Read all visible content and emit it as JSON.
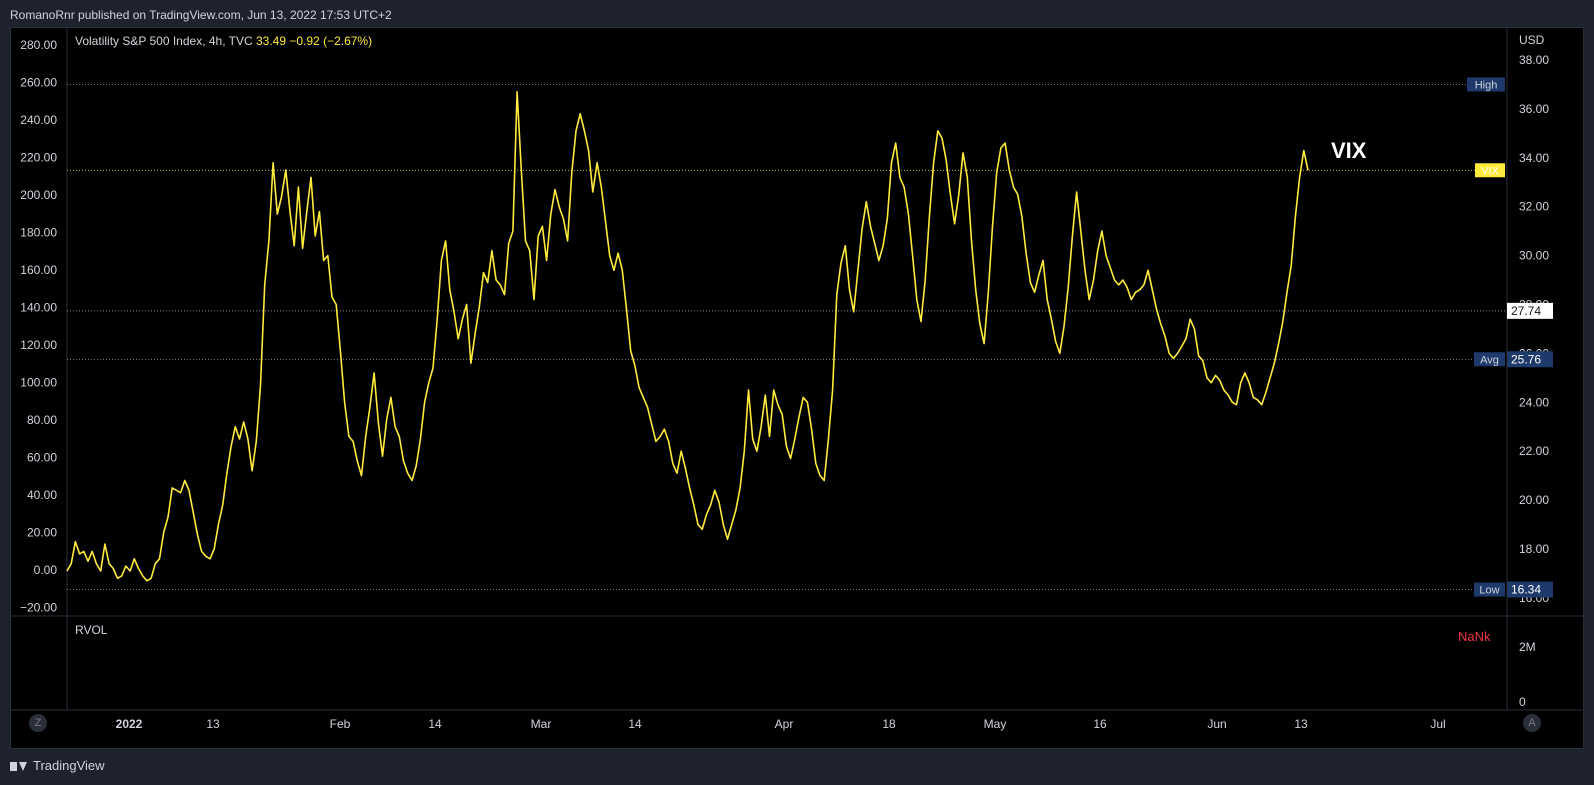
{
  "header": {
    "published_text": "RomanoRnr published on TradingView.com, Jun 13, 2022 17:53 UTC+2"
  },
  "footer": {
    "brand": "TradingView"
  },
  "legend": {
    "symbol_text": "Volatility S&P 500 Index, 4h, TVC",
    "last": "33.49",
    "change": "−0.92 (−2.67%)"
  },
  "annotation": {
    "text": "VIX"
  },
  "rvol": {
    "label": "RVOL",
    "value": "NaNk"
  },
  "buttons": {
    "left": "Z",
    "right": "A"
  },
  "colors": {
    "line": "#ffeb3b",
    "background": "#000000",
    "panel": "#1e222d",
    "badge": "#1e3a6a",
    "rvol_value": "#f23645"
  },
  "chart_data": {
    "type": "line",
    "title": "Volatility S&P 500 Index, 4h, TVC",
    "currency_label": "USD",
    "left_axis": {
      "ticks": [
        "280.00",
        "260.00",
        "240.00",
        "220.00",
        "200.00",
        "180.00",
        "160.00",
        "140.00",
        "120.00",
        "100.00",
        "80.00",
        "60.00",
        "40.00",
        "20.00",
        "0.00",
        "−20.00"
      ]
    },
    "right_axis": {
      "ticks": [
        "38.00",
        "36.00",
        "34.00",
        "32.00",
        "30.00",
        "28.00",
        "26.00",
        "24.00",
        "22.00",
        "20.00",
        "18.00",
        "16.00"
      ],
      "range": [
        15.3,
        38.9
      ]
    },
    "x_axis": {
      "ticks": [
        "2022",
        "13",
        "Feb",
        "14",
        "Mar",
        "14",
        "Apr",
        "18",
        "May",
        "16",
        "Jun",
        "13",
        "Jul"
      ]
    },
    "markers": [
      {
        "label": "High",
        "value": 37.0
      },
      {
        "label": "VIX",
        "value": 33.49
      },
      {
        "label": "",
        "value_text": "27.74",
        "value": 27.74
      },
      {
        "label": "Avg",
        "value_text": "25.76",
        "value": 25.76
      },
      {
        "label": "Low",
        "value_text": "16.34",
        "value": 16.34
      }
    ],
    "rvol_axis": {
      "ticks": [
        "2M",
        "0"
      ]
    },
    "series": [
      {
        "values": [
          17.1,
          17.4,
          18.3,
          17.8,
          17.9,
          17.5,
          17.9,
          17.4,
          17.1,
          18.2,
          17.4,
          17.2,
          16.8,
          16.9,
          17.3,
          17.1,
          17.6,
          17.2,
          16.9,
          16.7,
          16.8,
          17.4,
          17.6,
          18.7,
          19.3,
          20.5,
          20.4,
          20.3,
          20.8,
          20.4,
          19.5,
          18.6,
          17.9,
          17.7,
          17.6,
          18.0,
          19.0,
          19.8,
          21.1,
          22.2,
          23.0,
          22.5,
          23.2,
          22.5,
          21.2,
          22.4,
          24.7,
          28.8,
          30.6,
          33.8,
          31.7,
          32.4,
          33.5,
          31.8,
          30.4,
          32.8,
          30.3,
          31.8,
          33.2,
          30.8,
          31.8,
          29.8,
          30.0,
          28.3,
          28.0,
          26.1,
          24.0,
          22.6,
          22.4,
          21.6,
          21.0,
          22.6,
          23.8,
          25.2,
          23.2,
          21.8,
          23.3,
          24.2,
          23.0,
          22.6,
          21.6,
          21.1,
          20.8,
          21.4,
          22.5,
          24.0,
          24.8,
          25.4,
          27.4,
          29.8,
          30.6,
          28.6,
          27.7,
          26.6,
          27.4,
          28.0,
          25.6,
          26.8,
          27.9,
          29.3,
          28.9,
          30.2,
          29.0,
          28.8,
          28.4,
          30.5,
          31.0,
          36.7,
          33.5,
          30.6,
          30.2,
          28.2,
          30.8,
          31.2,
          29.8,
          31.7,
          32.7,
          32.0,
          31.5,
          30.6,
          33.4,
          35.1,
          35.8,
          35.1,
          34.3,
          32.6,
          33.8,
          32.8,
          31.4,
          30.0,
          29.4,
          30.1,
          29.4,
          27.8,
          26.1,
          25.5,
          24.6,
          24.2,
          23.8,
          23.1,
          22.4,
          22.6,
          22.9,
          22.4,
          21.5,
          21.1,
          22.0,
          21.3,
          20.5,
          19.8,
          19.0,
          18.8,
          19.4,
          19.8,
          20.4,
          19.9,
          19.0,
          18.4,
          19.0,
          19.6,
          20.5,
          22.0,
          24.5,
          22.5,
          22.0,
          23.0,
          24.3,
          22.6,
          24.5,
          23.9,
          23.5,
          22.2,
          21.7,
          22.5,
          23.4,
          24.2,
          24.0,
          22.9,
          21.5,
          21.0,
          20.8,
          22.5,
          24.5,
          28.4,
          29.7,
          30.4,
          28.6,
          27.7,
          29.4,
          31.1,
          32.2,
          31.2,
          30.5,
          29.8,
          30.4,
          31.5,
          33.8,
          34.6,
          33.2,
          32.8,
          31.7,
          30.0,
          28.2,
          27.3,
          29.0,
          31.6,
          33.8,
          35.1,
          34.8,
          33.9,
          32.5,
          31.3,
          32.5,
          34.2,
          33.2,
          30.6,
          28.6,
          27.2,
          26.4,
          28.5,
          31.2,
          33.4,
          34.4,
          34.6,
          33.5,
          32.8,
          32.5,
          31.6,
          30.1,
          28.9,
          28.5,
          29.2,
          29.8,
          28.2,
          27.4,
          26.5,
          26.0,
          27.1,
          28.7,
          30.8,
          32.6,
          31.0,
          29.4,
          28.2,
          29.0,
          30.2,
          31.0,
          30.0,
          29.5,
          29.0,
          28.8,
          29.0,
          28.7,
          28.2,
          28.5,
          28.6,
          28.8,
          29.4,
          28.6,
          27.8,
          27.2,
          26.7,
          26.0,
          25.8,
          26.0,
          26.3,
          26.6,
          27.4,
          27.0,
          25.9,
          25.7,
          25.0,
          24.8,
          25.1,
          24.9,
          24.5,
          24.3,
          24.0,
          23.9,
          24.8,
          25.2,
          24.8,
          24.2,
          24.1,
          23.9,
          24.4,
          25.0,
          25.6,
          26.4,
          27.3,
          28.5,
          29.6,
          31.6,
          33.2,
          34.3,
          33.49
        ]
      }
    ]
  }
}
